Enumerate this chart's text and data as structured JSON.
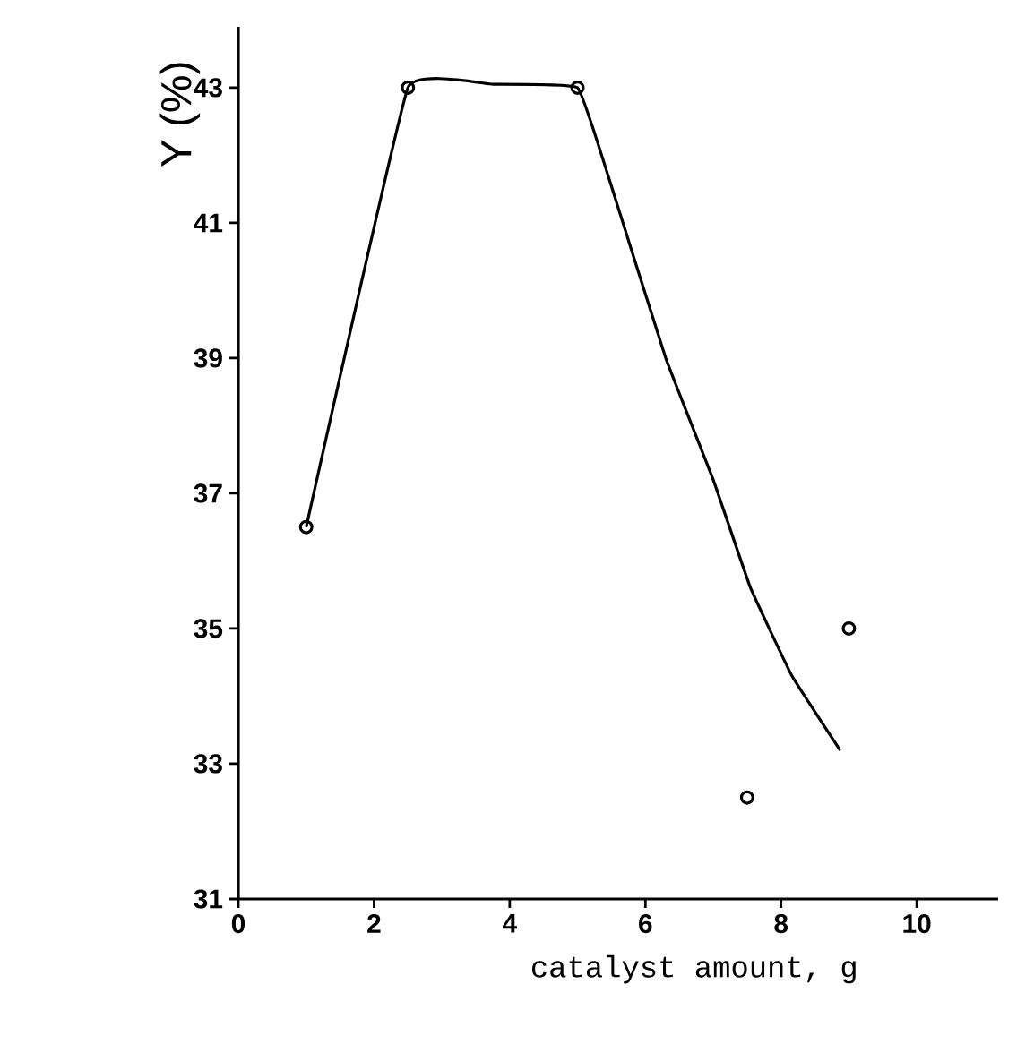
{
  "chart_data": {
    "type": "scatter",
    "xlabel": "catalyst amount, g",
    "ylabel": "Y (%)",
    "xlim": [
      0,
      11.2
    ],
    "ylim": [
      31,
      43.9
    ],
    "xticks": [
      0,
      2,
      4,
      6,
      8,
      10
    ],
    "yticks": [
      31,
      33,
      35,
      37,
      39,
      41,
      43
    ],
    "grid": false,
    "series": [
      {
        "color": "#000000",
        "marker": "circle",
        "x": [
          1,
          2.5,
          5,
          7.5,
          9
        ],
        "values": [
          36.5,
          43,
          43,
          32.5,
          35.0
        ]
      },
      {
        "type": "line",
        "color": "#000000",
        "marker": "none",
        "x": [
          1,
          2.5,
          3.75,
          5,
          5.45,
          6.3,
          7.0,
          7.55,
          8.16,
          8.87
        ],
        "values": [
          36.5,
          43,
          43.05,
          43,
          41.7,
          39.0,
          37.2,
          35.6,
          34.3,
          33.2
        ]
      }
    ]
  }
}
